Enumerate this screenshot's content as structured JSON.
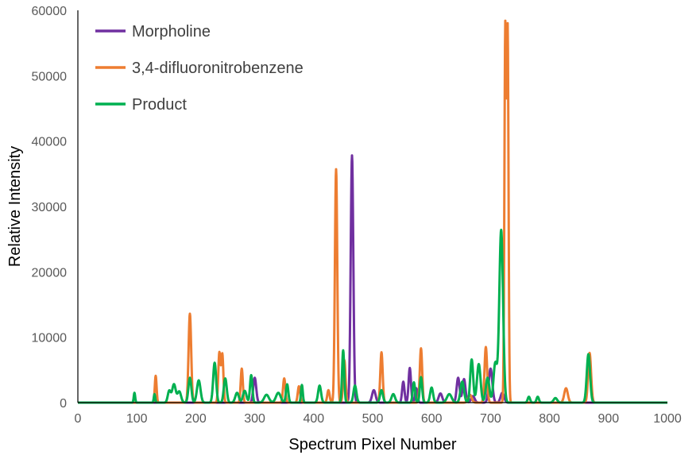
{
  "chart_data": {
    "type": "line",
    "title": "",
    "xlabel": "Spectrum Pixel Number",
    "ylabel": "Relative Intensity",
    "xlim": [
      0,
      1000
    ],
    "ylim": [
      0,
      60000
    ],
    "x_ticks": [
      0,
      100,
      200,
      300,
      400,
      500,
      600,
      700,
      800,
      900,
      1000
    ],
    "y_ticks": [
      0,
      10000,
      20000,
      30000,
      40000,
      50000,
      60000
    ],
    "grid": false,
    "legend_position": "top-left",
    "series": [
      {
        "name": "Morpholine",
        "color": "#7030A0",
        "peaks": [
          {
            "x": 300,
            "y": 3800,
            "w": 2.5
          },
          {
            "x": 465,
            "y": 37800,
            "w": 2.2
          },
          {
            "x": 502,
            "y": 1900,
            "w": 3
          },
          {
            "x": 552,
            "y": 3200,
            "w": 2
          },
          {
            "x": 563,
            "y": 5300,
            "w": 2
          },
          {
            "x": 574,
            "y": 2200,
            "w": 2
          },
          {
            "x": 615,
            "y": 1400,
            "w": 3
          },
          {
            "x": 645,
            "y": 3800,
            "w": 2.5
          },
          {
            "x": 655,
            "y": 3600,
            "w": 2.5
          },
          {
            "x": 670,
            "y": 1000,
            "w": 3
          },
          {
            "x": 700,
            "y": 5200,
            "w": 3
          },
          {
            "x": 720,
            "y": 1500,
            "w": 3
          }
        ]
      },
      {
        "name": "3,4-difluoronitrobenzene",
        "color": "#ED7D31",
        "peaks": [
          {
            "x": 132,
            "y": 4100,
            "w": 1.5
          },
          {
            "x": 190,
            "y": 13600,
            "w": 2.2
          },
          {
            "x": 240,
            "y": 7600,
            "w": 1.8
          },
          {
            "x": 245,
            "y": 7400,
            "w": 1.8
          },
          {
            "x": 278,
            "y": 5200,
            "w": 1.8
          },
          {
            "x": 350,
            "y": 3700,
            "w": 2
          },
          {
            "x": 375,
            "y": 2500,
            "w": 2
          },
          {
            "x": 425,
            "y": 1900,
            "w": 2
          },
          {
            "x": 438,
            "y": 35700,
            "w": 2
          },
          {
            "x": 452,
            "y": 6500,
            "w": 2
          },
          {
            "x": 515,
            "y": 7700,
            "w": 2
          },
          {
            "x": 582,
            "y": 8300,
            "w": 2
          },
          {
            "x": 665,
            "y": 1200,
            "w": 3
          },
          {
            "x": 692,
            "y": 8500,
            "w": 2.2
          },
          {
            "x": 725,
            "y": 56800,
            "w": 1.5
          },
          {
            "x": 729,
            "y": 56400,
            "w": 1.5
          },
          {
            "x": 828,
            "y": 2200,
            "w": 3
          },
          {
            "x": 868,
            "y": 7600,
            "w": 2.5
          }
        ]
      },
      {
        "name": "Product",
        "color": "#00B050",
        "peaks": [
          {
            "x": 96,
            "y": 1500,
            "w": 1.2
          },
          {
            "x": 130,
            "y": 1300,
            "w": 1.2
          },
          {
            "x": 155,
            "y": 1800,
            "w": 2.5
          },
          {
            "x": 163,
            "y": 2800,
            "w": 3
          },
          {
            "x": 172,
            "y": 1700,
            "w": 3
          },
          {
            "x": 190,
            "y": 3800,
            "w": 2.5
          },
          {
            "x": 205,
            "y": 3400,
            "w": 3
          },
          {
            "x": 232,
            "y": 6100,
            "w": 2.5
          },
          {
            "x": 250,
            "y": 3700,
            "w": 2.5
          },
          {
            "x": 270,
            "y": 1500,
            "w": 3
          },
          {
            "x": 283,
            "y": 1800,
            "w": 3
          },
          {
            "x": 294,
            "y": 4200,
            "w": 2
          },
          {
            "x": 320,
            "y": 1200,
            "w": 4
          },
          {
            "x": 340,
            "y": 1500,
            "w": 4
          },
          {
            "x": 355,
            "y": 2800,
            "w": 2
          },
          {
            "x": 380,
            "y": 2700,
            "w": 1.5
          },
          {
            "x": 410,
            "y": 2600,
            "w": 2.5
          },
          {
            "x": 450,
            "y": 8000,
            "w": 1.8
          },
          {
            "x": 470,
            "y": 2600,
            "w": 2.5
          },
          {
            "x": 515,
            "y": 1900,
            "w": 2.5
          },
          {
            "x": 535,
            "y": 1300,
            "w": 3
          },
          {
            "x": 570,
            "y": 3100,
            "w": 2
          },
          {
            "x": 582,
            "y": 3900,
            "w": 2
          },
          {
            "x": 600,
            "y": 2300,
            "w": 2.5
          },
          {
            "x": 630,
            "y": 1300,
            "w": 4
          },
          {
            "x": 652,
            "y": 3200,
            "w": 3
          },
          {
            "x": 668,
            "y": 6600,
            "w": 2.5
          },
          {
            "x": 680,
            "y": 5900,
            "w": 3
          },
          {
            "x": 695,
            "y": 3800,
            "w": 3
          },
          {
            "x": 708,
            "y": 6000,
            "w": 3
          },
          {
            "x": 718,
            "y": 26400,
            "w": 3.2
          },
          {
            "x": 765,
            "y": 900,
            "w": 2
          },
          {
            "x": 780,
            "y": 900,
            "w": 2
          },
          {
            "x": 810,
            "y": 700,
            "w": 3
          },
          {
            "x": 866,
            "y": 7400,
            "w": 2.8
          }
        ]
      }
    ]
  }
}
